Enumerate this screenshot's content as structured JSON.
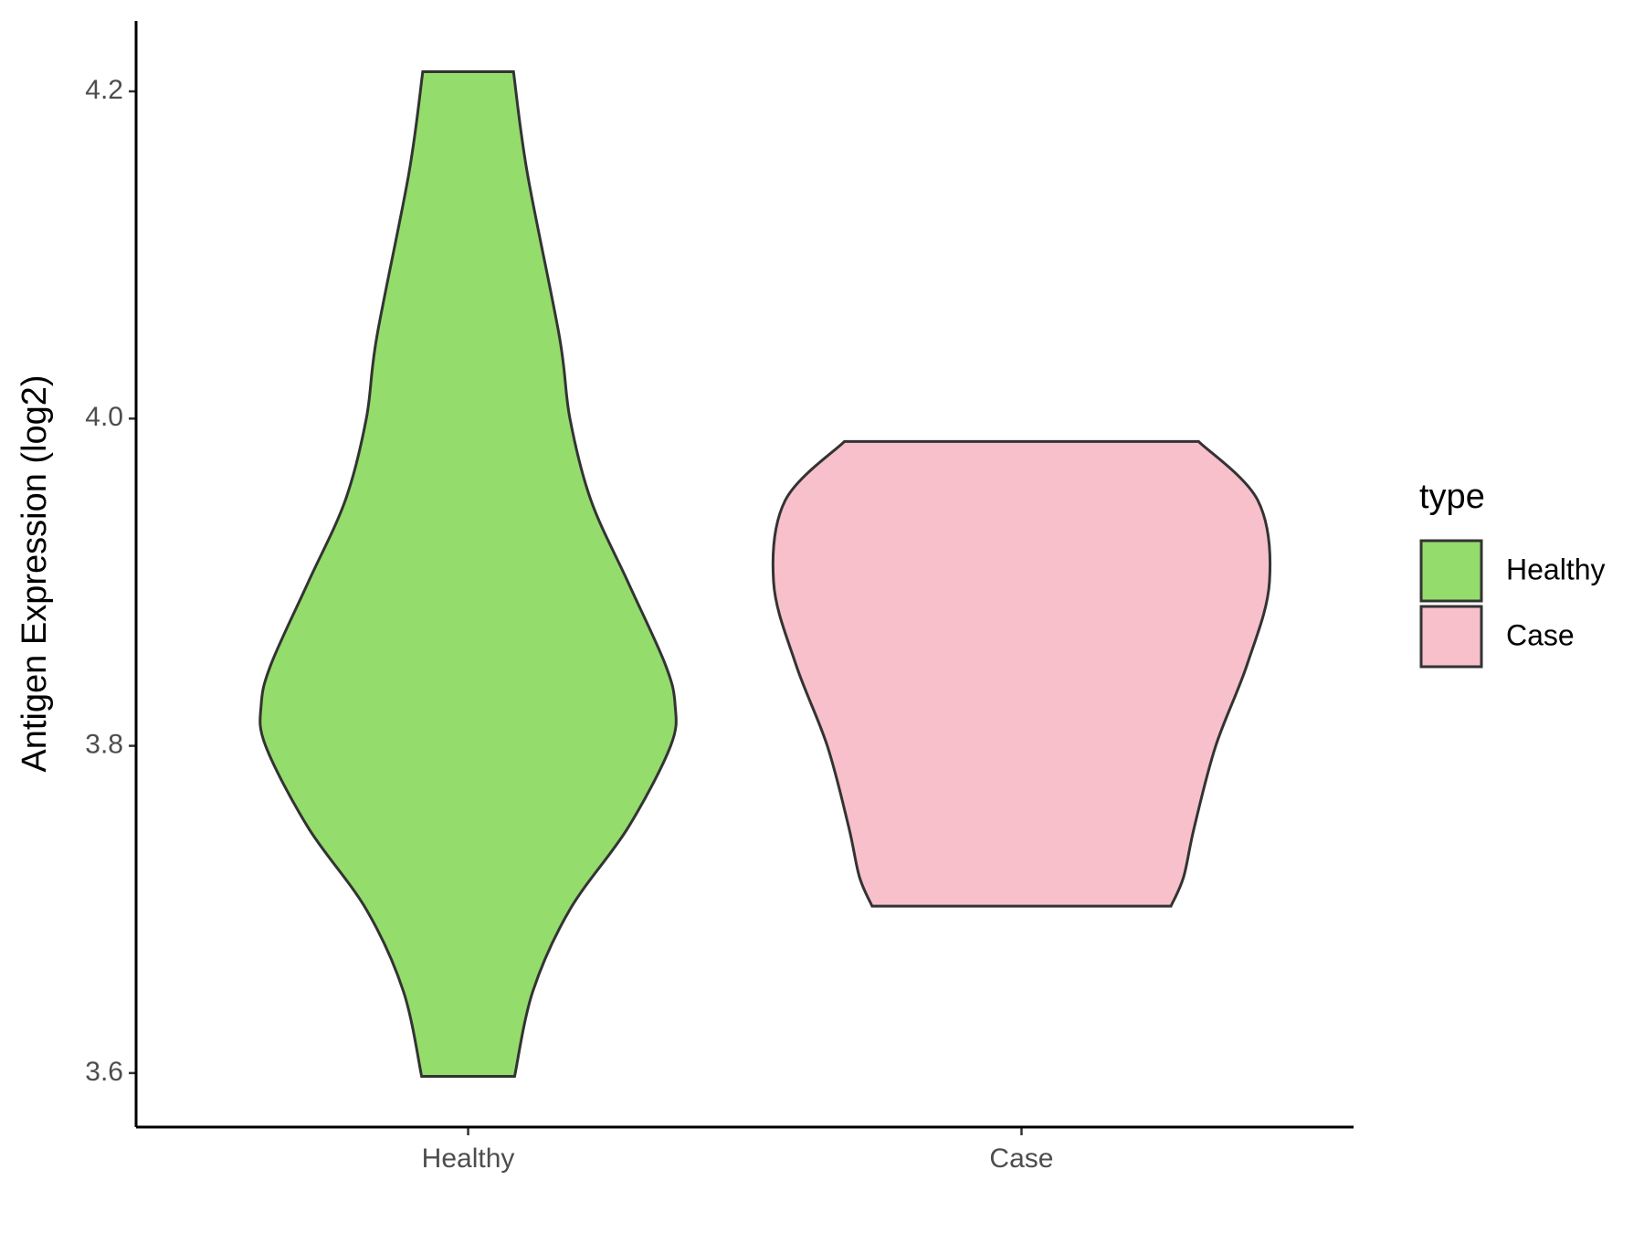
{
  "chart_data": {
    "type": "violin",
    "y_label": "Antigen Expression (log2)",
    "categories": [
      "Healthy",
      "Case"
    ],
    "series": [
      {
        "name": "Healthy",
        "color": "#94dc6b",
        "y": [
          4.212,
          4.15,
          4.05,
          4.0,
          3.95,
          3.9,
          3.85,
          3.825,
          3.8,
          3.75,
          3.7,
          3.65,
          3.598
        ],
        "half_width": [
          0.082,
          0.107,
          0.165,
          0.184,
          0.222,
          0.289,
          0.356,
          0.374,
          0.366,
          0.289,
          0.184,
          0.117,
          0.084
        ]
      },
      {
        "name": "Case",
        "color": "#f7c0cb",
        "y": [
          3.986,
          3.95,
          3.9,
          3.85,
          3.8,
          3.75,
          3.72,
          3.702
        ],
        "half_width": [
          0.32,
          0.427,
          0.448,
          0.408,
          0.351,
          0.312,
          0.293,
          0.27
        ]
      }
    ],
    "ylim": [
      3.567,
      4.243
    ],
    "yticks": [
      3.6,
      3.8,
      {
        "value": 4,
        "label": "4.0"
      },
      4.2
    ],
    "legend_title": "type",
    "legend": "right"
  }
}
